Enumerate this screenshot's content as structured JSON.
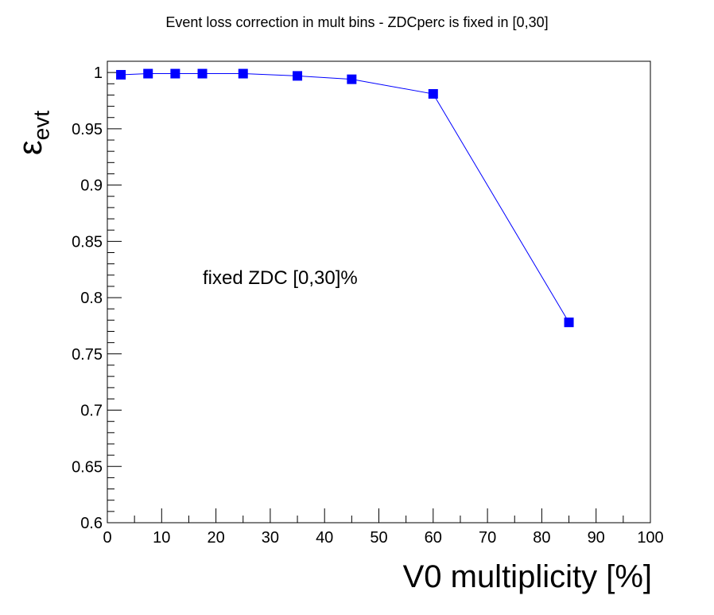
{
  "chart_data": {
    "type": "line",
    "title": "Event loss correction in mult bins - ZDCperc is fixed in [0,30]",
    "xlabel": "V0 multiplicity [%]",
    "ylabel_main": "ε",
    "ylabel_sub": "evt",
    "annotation": "fixed ZDC [0,30]%",
    "xlim": [
      0,
      100
    ],
    "ylim": [
      0.6,
      1.01
    ],
    "x_ticks": [
      0,
      10,
      20,
      30,
      40,
      50,
      60,
      70,
      80,
      90,
      100
    ],
    "y_ticks": [
      0.6,
      0.65,
      0.7,
      0.75,
      0.8,
      0.85,
      0.9,
      0.95,
      1
    ],
    "x_tick_labels": [
      "0",
      "10",
      "20",
      "30",
      "40",
      "50",
      "60",
      "70",
      "80",
      "90",
      "100"
    ],
    "y_tick_labels": [
      "0.6",
      "0.65",
      "0.7",
      "0.75",
      "0.8",
      "0.85",
      "0.9",
      "0.95",
      "1"
    ],
    "series": [
      {
        "color": "#0000ff",
        "marker": "square",
        "x": [
          2.5,
          7.5,
          12.5,
          17.5,
          25,
          35,
          45,
          60,
          85
        ],
        "y": [
          0.998,
          0.999,
          0.999,
          0.999,
          0.999,
          0.997,
          0.994,
          0.981,
          0.778
        ]
      }
    ],
    "grid": false,
    "legend": "none"
  }
}
